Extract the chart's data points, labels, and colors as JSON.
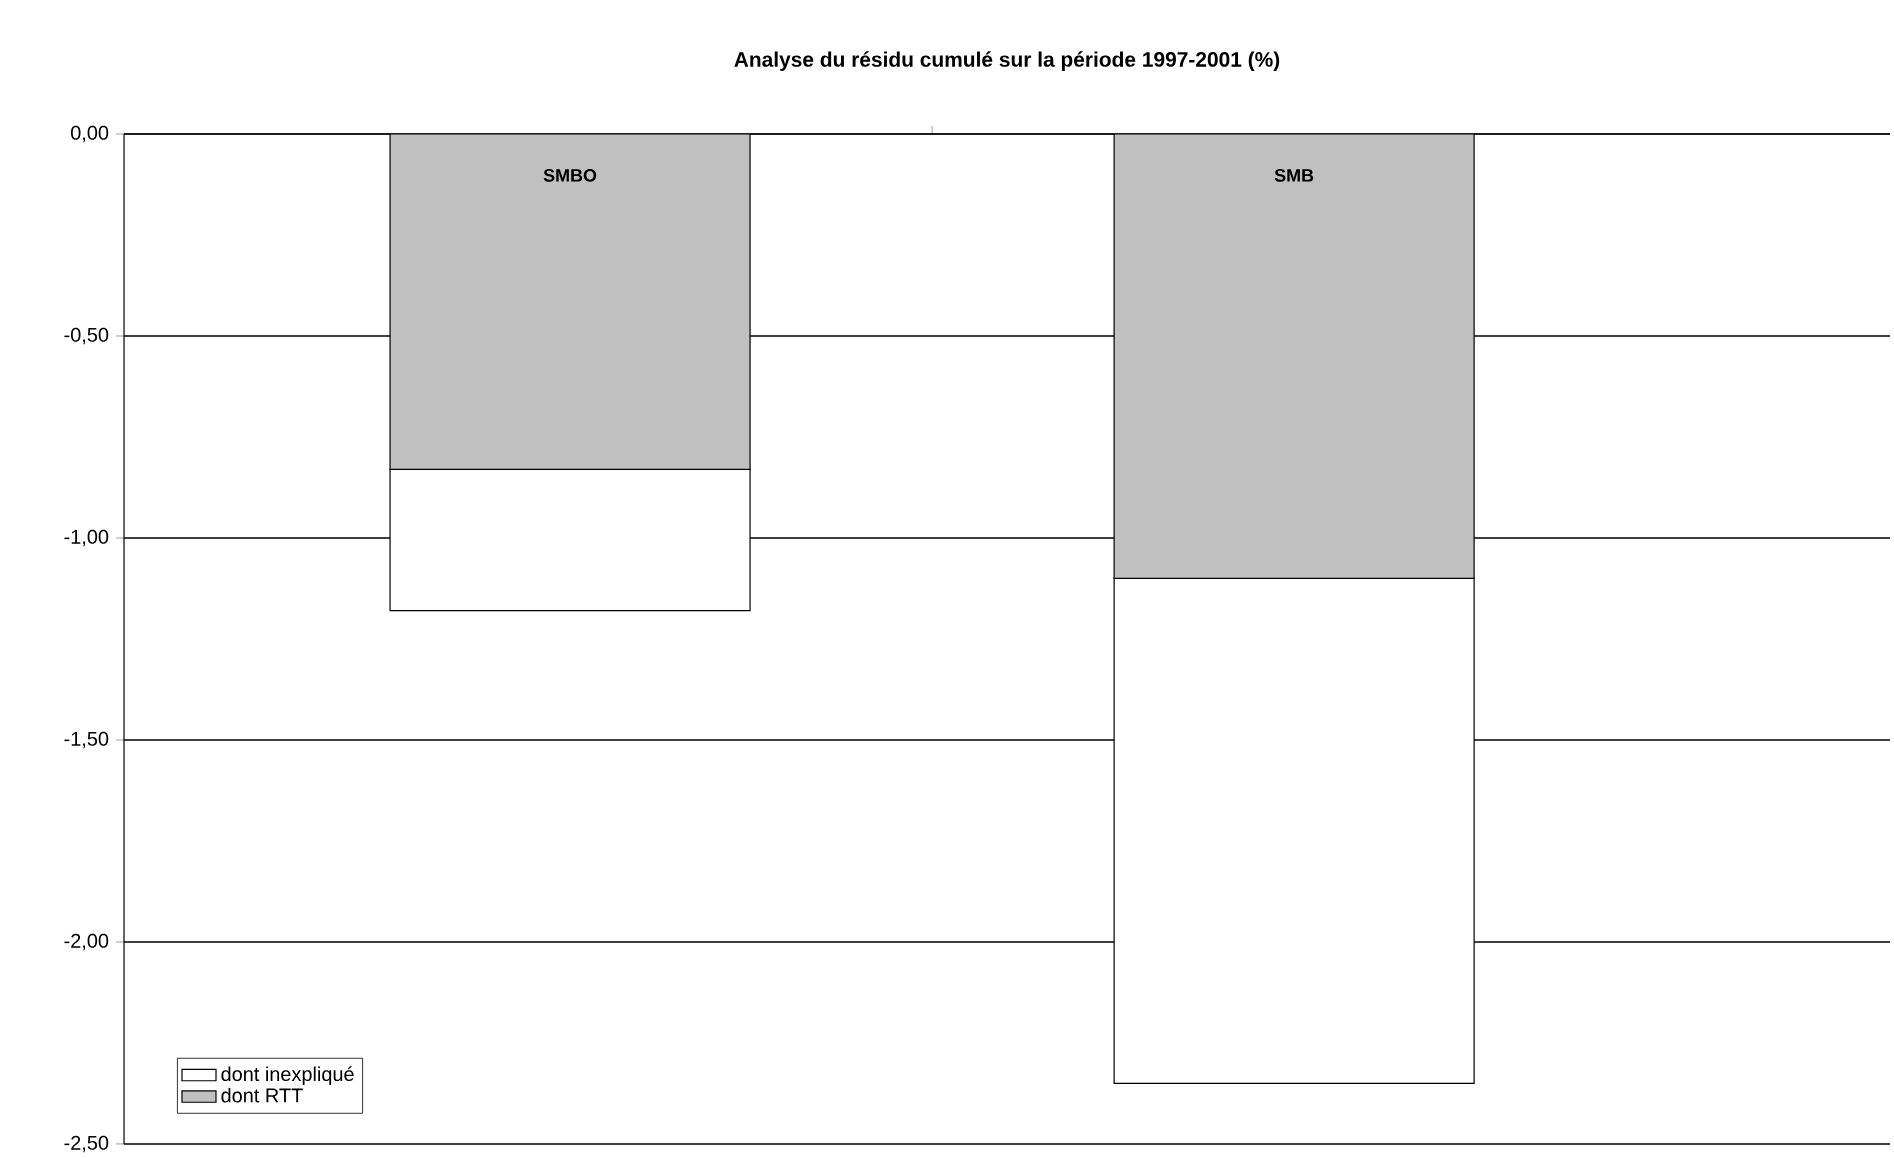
{
  "chart_data": {
    "type": "bar",
    "title": "Analyse du résidu cumulé sur la période 1997-2001 (%)",
    "categories": [
      "SMBO",
      "SMB"
    ],
    "stacked": true,
    "series": [
      {
        "name": "dont RTT",
        "color": "#c0c0c0",
        "values": [
          -0.83,
          -1.1
        ]
      },
      {
        "name": "dont inexpliqué",
        "color": "#ffffff",
        "values": [
          -0.35,
          -1.25
        ]
      }
    ],
    "ylim": [
      -2.5,
      0
    ],
    "yticks": [
      {
        "value": -2.5,
        "label": "-2,50"
      },
      {
        "value": -2,
        "label": "-2,00"
      },
      {
        "value": -1.5,
        "label": "-1,50"
      },
      {
        "value": -1,
        "label": "-1,00"
      },
      {
        "value": -0.5,
        "label": "-0,50"
      },
      {
        "value": 0,
        "label": "0,00"
      }
    ],
    "grid": "y",
    "legend": "bottom left"
  }
}
